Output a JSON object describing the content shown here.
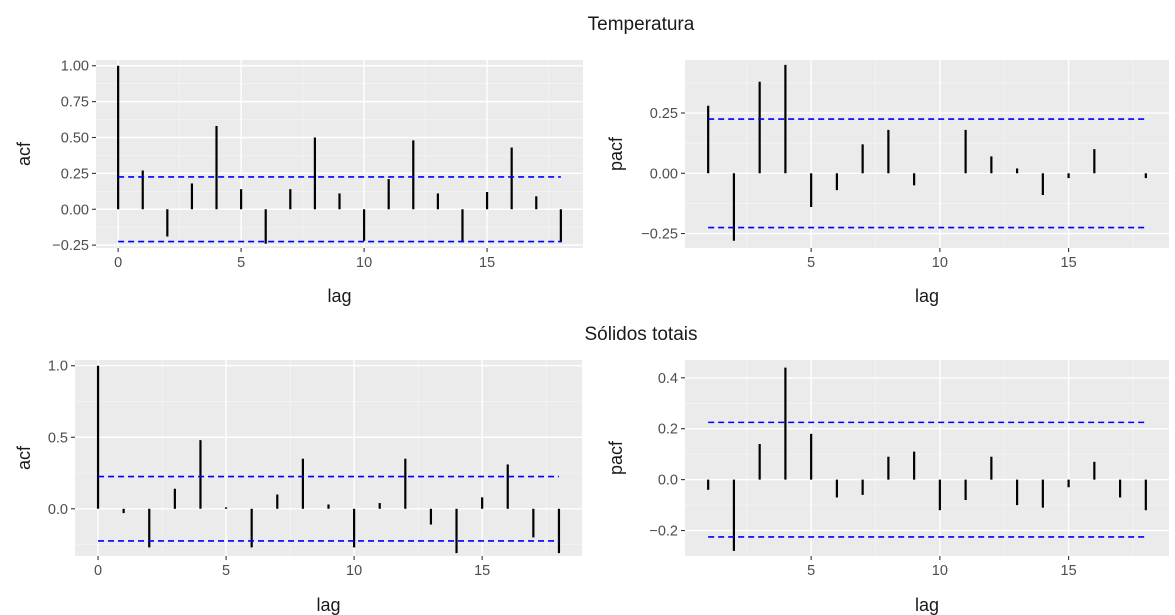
{
  "sections": [
    {
      "title": "Temperatura"
    },
    {
      "title": "Sólidos totais"
    }
  ],
  "chart_data": [
    {
      "type": "bar",
      "section": "Temperatura",
      "xlabel": "lag",
      "ylabel": "acf",
      "xlim": [
        -0.9,
        18.9
      ],
      "ylim": [
        -0.27,
        1.04
      ],
      "xticks": [
        0,
        5,
        10,
        15
      ],
      "yticks": [
        -0.25,
        0,
        0.25,
        0.5,
        0.75,
        1.0
      ],
      "ytick_labels": [
        "−0.25",
        "0.00",
        "0.25",
        "0.50",
        "0.75",
        "1.00"
      ],
      "grid": true,
      "x": [
        0,
        1,
        2,
        3,
        4,
        5,
        6,
        7,
        8,
        9,
        10,
        11,
        12,
        13,
        14,
        15,
        16,
        17,
        18
      ],
      "values": [
        1.0,
        0.27,
        -0.19,
        0.18,
        0.58,
        0.14,
        -0.24,
        0.14,
        0.5,
        0.11,
        -0.22,
        0.21,
        0.48,
        0.11,
        -0.23,
        0.12,
        0.43,
        0.09,
        -0.23
      ],
      "ci": 0.225,
      "ci_color": "#0000ff"
    },
    {
      "type": "bar",
      "section": "Temperatura",
      "xlabel": "lag",
      "ylabel": "pacf",
      "xlim": [
        0.1,
        18.9
      ],
      "ylim": [
        -0.31,
        0.47
      ],
      "xticks": [
        5,
        10,
        15
      ],
      "yticks": [
        -0.25,
        0,
        0.25
      ],
      "ytick_labels": [
        "−0.25",
        "0.00",
        "0.25"
      ],
      "grid": true,
      "x": [
        1,
        2,
        3,
        4,
        5,
        6,
        7,
        8,
        9,
        10,
        11,
        12,
        13,
        14,
        15,
        16,
        17,
        18
      ],
      "values": [
        0.28,
        -0.28,
        0.38,
        0.45,
        -0.14,
        -0.07,
        0.12,
        0.18,
        -0.05,
        0.0,
        0.18,
        0.07,
        0.02,
        -0.09,
        -0.02,
        0.1,
        0.0,
        -0.02
      ],
      "ci": 0.225,
      "ci_color": "#0000ff"
    },
    {
      "type": "bar",
      "section": "Sólidos totais",
      "xlabel": "lag",
      "ylabel": "acf",
      "xlim": [
        -0.9,
        18.9
      ],
      "ylim": [
        -0.33,
        1.04
      ],
      "xticks": [
        0,
        5,
        10,
        15
      ],
      "yticks": [
        0,
        0.5,
        1.0
      ],
      "ytick_labels": [
        "0.0",
        "0.5",
        "1.0"
      ],
      "grid": true,
      "x": [
        0,
        1,
        2,
        3,
        4,
        5,
        6,
        7,
        8,
        9,
        10,
        11,
        12,
        13,
        14,
        15,
        16,
        17,
        18
      ],
      "values": [
        1.0,
        -0.03,
        -0.27,
        0.14,
        0.48,
        0.01,
        -0.27,
        0.1,
        0.35,
        0.03,
        -0.27,
        0.04,
        0.35,
        -0.11,
        -0.31,
        0.08,
        0.31,
        -0.2,
        -0.31
      ],
      "ci": 0.225,
      "ci_color": "#0000ff"
    },
    {
      "type": "bar",
      "section": "Sólidos totais",
      "xlabel": "lag",
      "ylabel": "pacf",
      "xlim": [
        0.1,
        18.9
      ],
      "ylim": [
        -0.3,
        0.47
      ],
      "xticks": [
        5,
        10,
        15
      ],
      "yticks": [
        -0.2,
        0,
        0.2,
        0.4
      ],
      "ytick_labels": [
        "−0.2",
        "0.0",
        "0.2",
        "0.4"
      ],
      "grid": true,
      "x": [
        1,
        2,
        3,
        4,
        5,
        6,
        7,
        8,
        9,
        10,
        11,
        12,
        13,
        14,
        15,
        16,
        17,
        18
      ],
      "values": [
        -0.04,
        -0.28,
        0.14,
        0.44,
        0.18,
        -0.07,
        -0.06,
        0.09,
        0.11,
        -0.12,
        -0.08,
        0.09,
        -0.1,
        -0.11,
        -0.03,
        0.07,
        -0.07,
        -0.12
      ],
      "ci": 0.225,
      "ci_color": "#0000ff"
    }
  ]
}
